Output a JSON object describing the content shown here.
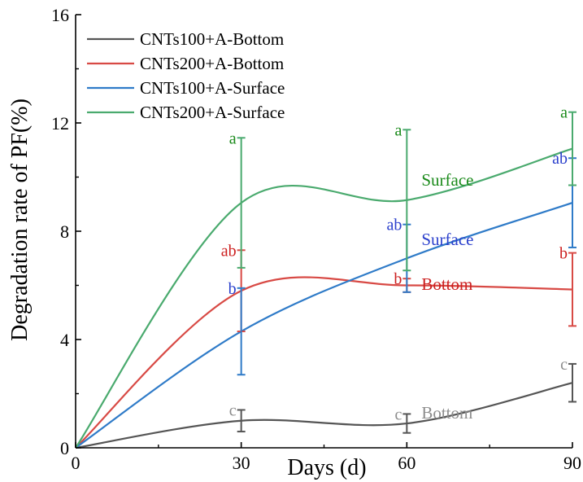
{
  "chart_data": {
    "type": "line",
    "title": "",
    "xlabel": "Days (d)",
    "ylabel": "Degradation rate of PF(%)",
    "x": [
      0,
      30,
      60,
      90
    ],
    "xlim": [
      0,
      90
    ],
    "ylim": [
      0,
      16
    ],
    "xticks": [
      "0",
      "30",
      "60",
      "90"
    ],
    "yticks": [
      "0",
      "4",
      "8",
      "12",
      "16"
    ],
    "grid": false,
    "legend_position": "top-left",
    "series": [
      {
        "name": "CNTs100+A-Bottom",
        "color": "#555555",
        "label_color": "#8c8c8c",
        "y": [
          0,
          1.0,
          0.9,
          2.4
        ],
        "err": [
          0,
          0.4,
          0.35,
          0.7
        ],
        "letters": [
          "",
          "c",
          "c",
          "c"
        ]
      },
      {
        "name": "CNTs200+A-Bottom",
        "color": "#d84a45",
        "label_color": "#cc1f1f",
        "y": [
          0,
          5.8,
          6.0,
          5.85
        ],
        "err": [
          0,
          1.5,
          0.25,
          1.35
        ],
        "letters": [
          "",
          "ab",
          "b",
          "b"
        ]
      },
      {
        "name": "CNTs100+A-Surface",
        "color": "#2f7bc8",
        "label_color": "#2a3fcc",
        "y": [
          0,
          4.3,
          7.0,
          9.05
        ],
        "err": [
          0,
          1.6,
          1.25,
          1.65
        ],
        "letters": [
          "",
          "b",
          "ab",
          "ab"
        ]
      },
      {
        "name": "CNTs200+A-Surface",
        "color": "#4aaa6e",
        "label_color": "#1a8a1a",
        "y": [
          0,
          9.05,
          9.15,
          11.05
        ],
        "err": [
          0,
          2.4,
          2.6,
          1.35
        ],
        "letters": [
          "",
          "a",
          "a",
          "a"
        ]
      }
    ],
    "annotations": [
      {
        "text": "Surface",
        "x": 60,
        "y": 9.9,
        "color": "#1a8a1a"
      },
      {
        "text": "Surface",
        "x": 60,
        "y": 7.7,
        "color": "#2a3fcc"
      },
      {
        "text": "Bottom",
        "x": 60,
        "y": 6.05,
        "color": "#cc1f1f"
      },
      {
        "text": "Bottom",
        "x": 60,
        "y": 1.3,
        "color": "#8c8c8c"
      }
    ]
  }
}
